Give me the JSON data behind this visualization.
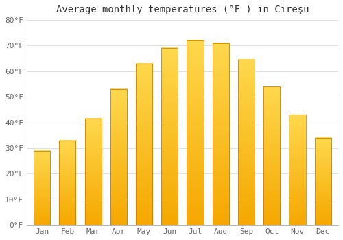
{
  "title": "Average monthly temperatures (°F ) in Cireşu",
  "months": [
    "Jan",
    "Feb",
    "Mar",
    "Apr",
    "May",
    "Jun",
    "Jul",
    "Aug",
    "Sep",
    "Oct",
    "Nov",
    "Dec"
  ],
  "values": [
    29,
    33,
    41.5,
    53,
    63,
    69,
    72,
    71,
    64.5,
    54,
    43,
    34
  ],
  "bar_color_bottom": "#F5A800",
  "bar_color_top": "#FFD84D",
  "bar_edge_color": "#C87000",
  "ylim": [
    0,
    80
  ],
  "yticks": [
    0,
    10,
    20,
    30,
    40,
    50,
    60,
    70,
    80
  ],
  "background_color": "#FFFFFF",
  "plot_bg_color": "#FFFFFF",
  "grid_color": "#E0E0E0",
  "title_fontsize": 10,
  "tick_fontsize": 8,
  "tick_color": "#666666",
  "title_color": "#333333"
}
